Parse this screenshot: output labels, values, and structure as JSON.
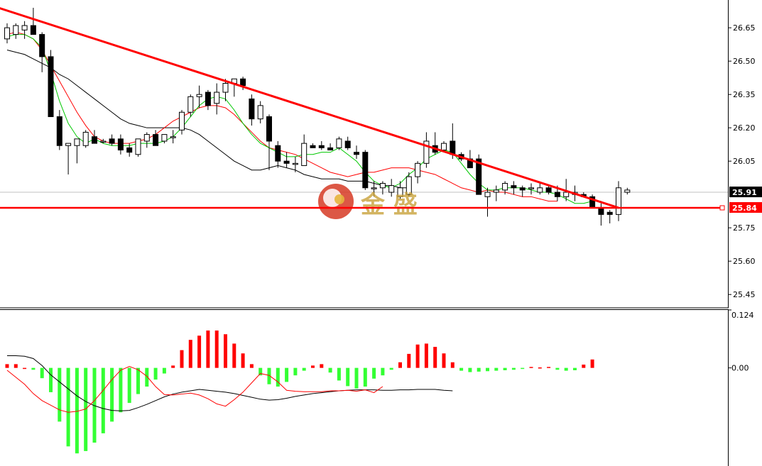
{
  "watermark": {
    "text": "金 盛",
    "icon": "jinsheng-logo-icon"
  },
  "colors": {
    "bull": "#ffffff",
    "bear": "#000000",
    "candle_outline": "#000000",
    "ma_fast": "#00c800",
    "ma_mid": "#ff0000",
    "ma_slow": "#000000",
    "trendline": "#ff0000",
    "support": "#ff0000",
    "hist_pos": "#ff0000",
    "hist_neg": "#33ff33",
    "macd_line": "#000000",
    "signal_line": "#ff0000",
    "current_price_tag": "#000000",
    "support_tag": "#ff0000",
    "grid_line": "#c0c0c0"
  },
  "chart_data": [
    {
      "type": "candlestick",
      "title": "",
      "y_ticks": [
        "26.65",
        "26.50",
        "26.35",
        "26.20",
        "26.05",
        "25.91",
        "25.84",
        "25.75",
        "25.60",
        "25.45"
      ],
      "ylim": [
        25.39,
        26.775
      ],
      "current_price": 25.91,
      "current_price_label": "25.91",
      "support_level": 25.84,
      "support_label": "25.84",
      "trendline": {
        "start": [
          -1,
          26.74
        ],
        "end": [
          70,
          25.84
        ]
      },
      "candles": [
        [
          26.6,
          26.67,
          26.58,
          26.65
        ],
        [
          26.62,
          26.67,
          26.6,
          26.66
        ],
        [
          26.64,
          26.68,
          26.6,
          26.66
        ],
        [
          26.66,
          26.74,
          26.62,
          26.62
        ],
        [
          26.62,
          26.63,
          26.45,
          26.52
        ],
        [
          26.52,
          26.55,
          26.25,
          26.25
        ],
        [
          26.25,
          26.28,
          26.1,
          26.12
        ],
        [
          26.12,
          26.13,
          25.99,
          26.13
        ],
        [
          26.12,
          26.15,
          26.04,
          26.15
        ],
        [
          26.12,
          26.19,
          26.11,
          26.18
        ],
        [
          26.16,
          26.19,
          26.13,
          26.13
        ],
        [
          26.14,
          26.15,
          26.13,
          26.14
        ],
        [
          26.15,
          26.17,
          26.12,
          26.13
        ],
        [
          26.15,
          26.17,
          26.08,
          26.1
        ],
        [
          26.11,
          26.13,
          26.07,
          26.09
        ],
        [
          26.08,
          26.14,
          26.07,
          26.15
        ],
        [
          26.14,
          26.18,
          26.11,
          26.17
        ],
        [
          26.17,
          26.19,
          26.12,
          26.12
        ],
        [
          26.14,
          26.17,
          26.13,
          26.17
        ],
        [
          26.16,
          26.19,
          26.13,
          26.16
        ],
        [
          26.19,
          26.28,
          26.17,
          26.27
        ],
        [
          26.27,
          26.35,
          26.25,
          26.34
        ],
        [
          26.34,
          26.39,
          26.29,
          26.35
        ],
        [
          26.36,
          26.37,
          26.28,
          26.3
        ],
        [
          26.31,
          26.4,
          26.26,
          26.36
        ],
        [
          26.36,
          26.42,
          26.32,
          26.4
        ],
        [
          26.4,
          26.42,
          26.34,
          26.42
        ],
        [
          26.42,
          26.43,
          26.37,
          26.39
        ],
        [
          26.33,
          26.35,
          26.21,
          26.24
        ],
        [
          26.24,
          26.32,
          26.22,
          26.3
        ],
        [
          26.25,
          26.26,
          26.01,
          26.14
        ],
        [
          26.12,
          26.14,
          26.02,
          26.05
        ],
        [
          26.05,
          26.09,
          26.02,
          26.04
        ],
        [
          26.04,
          26.07,
          26.0,
          26.04
        ],
        [
          26.03,
          26.17,
          26.03,
          26.13
        ],
        [
          26.12,
          26.13,
          26.11,
          26.11
        ],
        [
          26.12,
          26.14,
          26.1,
          26.11
        ],
        [
          26.11,
          26.13,
          26.1,
          26.1
        ],
        [
          26.11,
          26.16,
          26.1,
          26.15
        ],
        [
          26.14,
          26.16,
          26.1,
          26.11
        ],
        [
          26.09,
          26.12,
          26.06,
          26.08
        ],
        [
          26.09,
          26.1,
          25.92,
          25.93
        ],
        [
          25.93,
          25.96,
          25.89,
          25.93
        ],
        [
          25.93,
          25.96,
          25.9,
          25.95
        ],
        [
          25.91,
          25.97,
          25.89,
          25.94
        ],
        [
          25.89,
          25.96,
          25.88,
          25.93
        ],
        [
          25.9,
          26.0,
          25.89,
          25.98
        ],
        [
          25.98,
          26.05,
          25.95,
          26.04
        ],
        [
          26.04,
          26.18,
          26.02,
          26.14
        ],
        [
          26.12,
          26.18,
          26.08,
          26.09
        ],
        [
          26.1,
          26.14,
          26.09,
          26.13
        ],
        [
          26.14,
          26.22,
          26.06,
          26.08
        ],
        [
          26.08,
          26.09,
          26.05,
          26.06
        ],
        [
          26.06,
          26.1,
          26.02,
          26.02
        ],
        [
          26.06,
          26.08,
          25.9,
          25.9
        ],
        [
          25.89,
          25.93,
          25.8,
          25.91
        ],
        [
          25.91,
          25.94,
          25.87,
          25.92
        ],
        [
          25.92,
          25.96,
          25.9,
          25.95
        ],
        [
          25.94,
          25.96,
          25.9,
          25.93
        ],
        [
          25.93,
          25.94,
          25.89,
          25.92
        ],
        [
          25.93,
          25.95,
          25.9,
          25.93
        ],
        [
          25.91,
          25.95,
          25.9,
          25.93
        ],
        [
          25.93,
          25.94,
          25.9,
          25.91
        ],
        [
          25.91,
          25.94,
          25.87,
          25.89
        ],
        [
          25.89,
          25.97,
          25.87,
          25.91
        ],
        [
          25.9,
          25.94,
          25.87,
          25.91
        ],
        [
          25.9,
          25.91,
          25.89,
          25.89
        ],
        [
          25.89,
          25.9,
          25.84,
          25.84
        ],
        [
          25.84,
          25.86,
          25.76,
          25.81
        ],
        [
          25.82,
          25.83,
          25.77,
          25.81
        ],
        [
          25.81,
          25.96,
          25.78,
          25.93
        ],
        [
          25.91,
          25.93,
          25.9,
          25.92
        ]
      ],
      "ma_fast": [
        26.61,
        26.62,
        26.62,
        26.6,
        26.56,
        26.45,
        26.32,
        26.22,
        26.16,
        26.13,
        26.15,
        26.13,
        26.12,
        26.12,
        26.12,
        26.13,
        26.13,
        26.13,
        26.14,
        26.16,
        26.2,
        26.25,
        26.3,
        26.33,
        26.34,
        26.33,
        26.28,
        26.22,
        26.17,
        26.13,
        26.11,
        26.09,
        26.07,
        26.07,
        26.08,
        26.08,
        26.09,
        26.09,
        26.11,
        26.08,
        26.05,
        26.0,
        25.96,
        25.94,
        25.93,
        25.95,
        25.99,
        26.02,
        26.06,
        26.08,
        26.1,
        26.09,
        26.04,
        25.99,
        25.95,
        25.92,
        25.92,
        25.93,
        25.93,
        25.93,
        25.92,
        25.91,
        25.91,
        25.9,
        25.88,
        25.86,
        25.86,
        25.87,
        25.87
      ],
      "ma_mid": [
        26.62,
        26.63,
        26.62,
        26.6,
        26.55,
        26.48,
        26.41,
        26.34,
        26.27,
        26.21,
        26.16,
        26.14,
        26.13,
        26.13,
        26.13,
        26.14,
        26.15,
        26.17,
        26.2,
        26.23,
        26.25,
        26.27,
        26.29,
        26.3,
        26.3,
        26.29,
        26.26,
        26.22,
        26.18,
        26.14,
        26.11,
        26.1,
        26.09,
        26.08,
        26.06,
        26.04,
        26.02,
        26.0,
        25.99,
        25.98,
        25.99,
        26.0,
        26.0,
        26.01,
        26.02,
        26.02,
        26.02,
        26.01,
        26.0,
        25.99,
        25.97,
        25.95,
        25.93,
        25.92,
        25.91,
        25.92,
        25.91,
        25.91,
        25.9,
        25.89,
        25.89,
        25.88,
        25.87,
        25.87
      ],
      "ma_slow": [
        26.55,
        26.54,
        26.53,
        26.51,
        26.49,
        26.47,
        26.44,
        26.42,
        26.39,
        26.36,
        26.33,
        26.3,
        26.27,
        26.24,
        26.22,
        26.21,
        26.2,
        26.2,
        26.2,
        26.2,
        26.2,
        26.19,
        26.17,
        26.14,
        26.11,
        26.08,
        26.05,
        26.03,
        26.01,
        26.01,
        26.02,
        26.03,
        26.02,
        26.01,
        25.99,
        25.98,
        25.97,
        25.97,
        25.97,
        25.96,
        25.96,
        25.96,
        25.95,
        25.94,
        25.94,
        25.93,
        25.93
      ]
    },
    {
      "type": "macd",
      "title": "",
      "y_ticks": [
        "0.124",
        "0.00"
      ],
      "ylim": [
        -0.21,
        0.124
      ],
      "hist": [
        0.008,
        0.008,
        0.0,
        -0.004,
        -0.022,
        -0.052,
        -0.115,
        -0.168,
        -0.183,
        -0.178,
        -0.16,
        -0.14,
        -0.115,
        -0.095,
        -0.075,
        -0.056,
        -0.04,
        -0.025,
        -0.012,
        0.005,
        0.038,
        0.06,
        0.069,
        0.08,
        0.08,
        0.072,
        0.052,
        0.031,
        0.008,
        -0.016,
        -0.035,
        -0.04,
        -0.03,
        -0.016,
        -0.006,
        0.005,
        0.008,
        -0.01,
        -0.027,
        -0.039,
        -0.044,
        -0.04,
        -0.023,
        -0.016,
        -0.004,
        0.012,
        0.03,
        0.05,
        0.052,
        0.045,
        0.031,
        0.012,
        -0.006,
        -0.009,
        -0.008,
        -0.007,
        -0.006,
        -0.005,
        -0.004,
        -0.001,
        0.002,
        0.001,
        0.002,
        -0.004,
        -0.006,
        -0.005,
        0.007,
        0.018
      ],
      "macd_line": [
        0.026,
        0.026,
        0.025,
        0.02,
        0.005,
        -0.015,
        -0.03,
        -0.045,
        -0.06,
        -0.072,
        -0.081,
        -0.087,
        -0.091,
        -0.092,
        -0.091,
        -0.085,
        -0.078,
        -0.07,
        -0.062,
        -0.056,
        -0.052,
        -0.049,
        -0.046,
        -0.048,
        -0.05,
        -0.052,
        -0.055,
        -0.059,
        -0.063,
        -0.067,
        -0.069,
        -0.068,
        -0.065,
        -0.061,
        -0.058,
        -0.055,
        -0.053,
        -0.051,
        -0.049,
        -0.048,
        -0.047,
        -0.047,
        -0.047,
        -0.048,
        -0.048,
        -0.047,
        -0.047,
        -0.046,
        -0.046,
        -0.046,
        -0.048,
        -0.049
      ],
      "signal_line": [
        -0.005,
        -0.02,
        -0.035,
        -0.055,
        -0.07,
        -0.08,
        -0.09,
        -0.095,
        -0.093,
        -0.088,
        -0.07,
        -0.048,
        -0.025,
        -0.005,
        0.003,
        -0.004,
        -0.018,
        -0.04,
        -0.057,
        -0.058,
        -0.056,
        -0.054,
        -0.058,
        -0.066,
        -0.077,
        -0.082,
        -0.068,
        -0.052,
        -0.032,
        -0.012,
        -0.016,
        -0.03,
        -0.048,
        -0.05,
        -0.051,
        -0.051,
        -0.051,
        -0.049,
        -0.049,
        -0.048,
        -0.05,
        -0.047,
        -0.053,
        -0.04
      ]
    }
  ]
}
